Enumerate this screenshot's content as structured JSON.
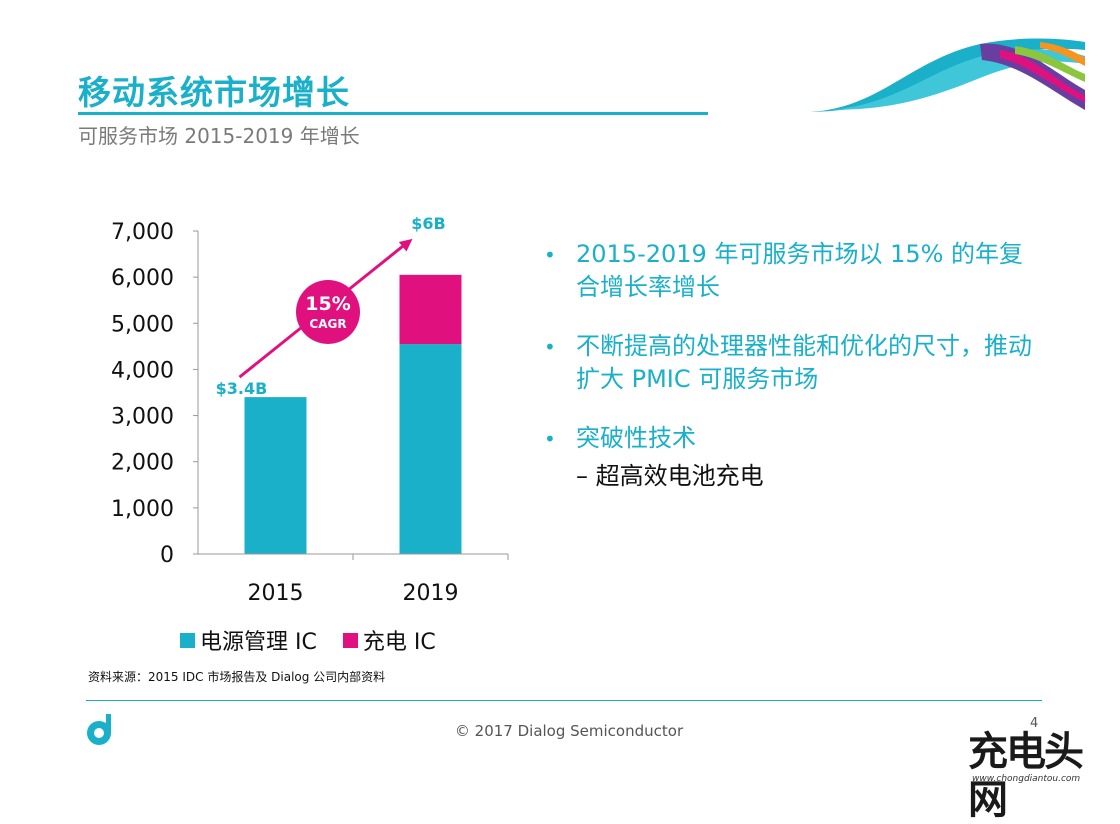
{
  "slide": {
    "title": "移动系统市场增长",
    "subtitle": "可服务市场 2015-2019 年增长"
  },
  "chart_data": {
    "type": "bar",
    "stacked": true,
    "categories": [
      "2015",
      "2019"
    ],
    "series": [
      {
        "name": "电源管理 IC",
        "color": "#1ab0c9",
        "values": [
          3400,
          4550
        ]
      },
      {
        "name": "充电 IC",
        "color": "#e0117f",
        "values": [
          0,
          1500
        ]
      }
    ],
    "ylim": [
      0,
      7000
    ],
    "yticks": [
      "0",
      "1,000",
      "2,000",
      "3,000",
      "4,000",
      "5,000",
      "6,000",
      "7,000"
    ],
    "grid": false,
    "annotations": {
      "start_label": "$3.4B",
      "end_label": "$6B",
      "cagr_value": "15%",
      "cagr_label": "CAGR"
    },
    "legend_position": "bottom"
  },
  "legend": {
    "items": [
      {
        "label": "电源管理 IC",
        "color": "#1ab0c9"
      },
      {
        "label": "充电 IC",
        "color": "#e0117f"
      }
    ]
  },
  "source_note": "资料来源：2015 IDC 市场报告及 Dialog 公司内部资料",
  "bullets": [
    {
      "marker": "•",
      "text": "2015-2019 年可服务市场以 15% 的年复合增长率增长"
    },
    {
      "marker": "•",
      "text": "不断提高的处理器性能和优化的尺寸，推动扩大 PMIC 可服务市场"
    },
    {
      "marker": "•",
      "text": "突破性技术",
      "sub": "– 超高效电池充电"
    }
  ],
  "footer": {
    "copyright": "© 2017 Dialog Semiconductor",
    "page_number": "4"
  },
  "watermark": {
    "big": "充电头网",
    "small": "www.chongdiantou.com"
  },
  "colors": {
    "accent": "#1ab0c9",
    "magenta": "#e0117f"
  }
}
